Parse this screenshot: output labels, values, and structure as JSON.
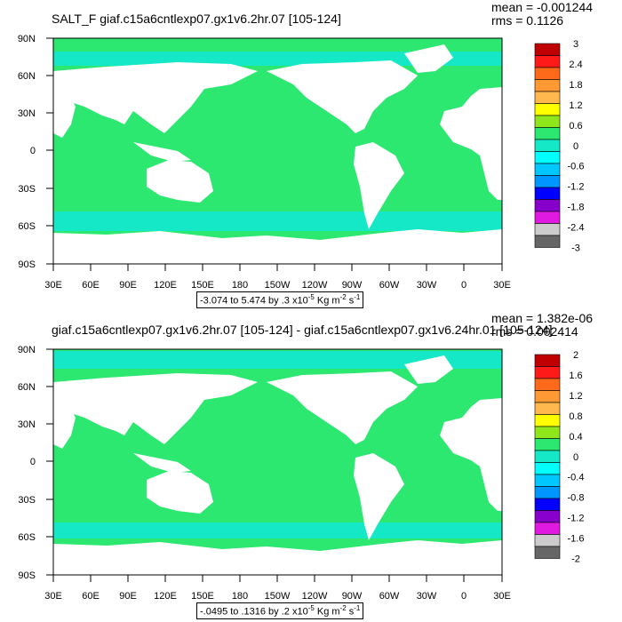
{
  "colors": {
    "ocean": "#2ce870",
    "ocean_neg": "#14e8c6",
    "ocean_neg2": "#00ffff",
    "land": "#ffffff",
    "frame": "#000000"
  },
  "colorbar_colors": [
    "#c00000",
    "#ff1a1a",
    "#ff6a1a",
    "#ff9933",
    "#ffb84d",
    "#ffff00",
    "#8fe61a",
    "#2ce870",
    "#14e8c6",
    "#00ffff",
    "#00c8ff",
    "#0096ff",
    "#0000ff",
    "#8800cc",
    "#e01ae0",
    "#cccccc",
    "#666666"
  ],
  "panels": [
    {
      "title": "SALT_F giaf.c15a6cntlexp07.gx1v6.2hr.07 [105-124]",
      "mean": "mean = -0.001244",
      "rms": "rms = 0.1126",
      "lat_labels": [
        "90N",
        "60N",
        "30N",
        "0",
        "30S",
        "60S",
        "90S"
      ],
      "lon_labels": [
        "30E",
        "60E",
        "90E",
        "120E",
        "150E",
        "180",
        "150W",
        "120W",
        "90W",
        "60W",
        "30W",
        "0",
        "30E"
      ],
      "colorbar_labels": [
        "3",
        "2.4",
        "1.8",
        "1.2",
        "0.6",
        "0",
        "-0.6",
        "-1.2",
        "-1.8",
        "-2.4",
        "-3"
      ],
      "units_text": "-3.074 to 5.474 by .3 x10",
      "units_exp": "-5",
      "units_mid": " Kg m",
      "units_exp2": "-2",
      "units_end": " s",
      "units_exp3": "-1"
    },
    {
      "title": "giaf.c15a6cntlexp07.gx1v6.2hr.07 [105-124] - giaf.c15a6cntlexp07.gx1v6.24hr.01 [105-124]",
      "mean": "mean = 1.382e-06",
      "rms": "rms = 0.002414",
      "lat_labels": [
        "90N",
        "60N",
        "30N",
        "0",
        "30S",
        "60S",
        "90S"
      ],
      "lon_labels": [
        "30E",
        "60E",
        "90E",
        "120E",
        "150E",
        "180",
        "150W",
        "120W",
        "90W",
        "60W",
        "30W",
        "0",
        "30E"
      ],
      "colorbar_labels": [
        "2",
        "1.6",
        "1.2",
        "0.8",
        "0.4",
        "0",
        "-0.4",
        "-0.8",
        "-1.2",
        "-1.6",
        "-2"
      ],
      "units_text": "-.0495 to .1316 by .2 x10",
      "units_exp": "-5",
      "units_mid": " Kg m",
      "units_exp2": "-2",
      "units_end": " s",
      "units_exp3": "-1"
    }
  ]
}
